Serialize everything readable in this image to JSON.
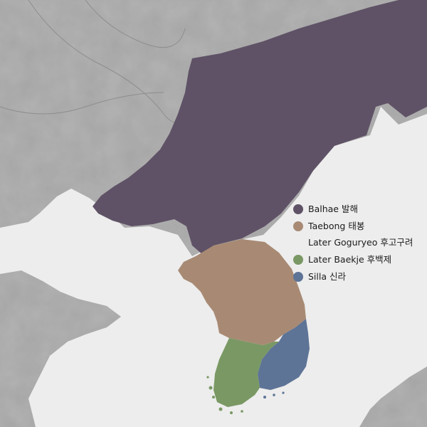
{
  "legend": [
    {
      "label": "Balhae 발해",
      "color": "#5f5266"
    },
    {
      "label": "Taebong 태봉",
      "label_line2": "Later Goguryeo 후고구려",
      "color": "#a88a74"
    },
    {
      "label": "Later Baekje 후백제",
      "color": "#7a9864"
    },
    {
      "label": "Silla 신라",
      "color": "#5d7496"
    }
  ],
  "colors": {
    "sea": "#ededed",
    "land": "#b5b5b5",
    "balhae": "#5f5266",
    "taebong": "#a88a74",
    "later_baekje": "#7a9864",
    "silla": "#5d7496"
  }
}
